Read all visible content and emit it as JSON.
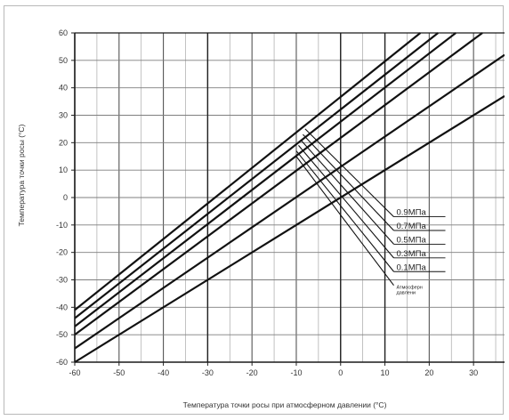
{
  "chart_data": {
    "type": "line",
    "xlabel": "Температура точки росы при атмосферном давлении (°C)",
    "ylabel": "Температура точки росы (°C)",
    "xlim": [
      -60,
      37
    ],
    "ylim": [
      -60,
      60
    ],
    "x_ticks": [
      -60,
      -50,
      -40,
      -30,
      -20,
      -10,
      0,
      10,
      20,
      30
    ],
    "y_ticks": [
      -60,
      -50,
      -40,
      -30,
      -20,
      -10,
      0,
      10,
      20,
      30,
      40,
      50,
      60
    ],
    "x_tick_labels": [
      "-60",
      "-50",
      "-40",
      "-30",
      "-20",
      "-10",
      "0",
      "10",
      "20",
      "30"
    ],
    "y_tick_labels": [
      "-60",
      "-50",
      "-40",
      "-30",
      "-20",
      "-10",
      "0",
      "10",
      "20",
      "30",
      "40",
      "50",
      "60"
    ],
    "grid": true,
    "series": [
      {
        "name": "Атмосферн давлени",
        "x": [
          -60,
          37
        ],
        "y": [
          -60,
          37
        ]
      },
      {
        "name": "0.1МПа",
        "x": [
          -60,
          37
        ],
        "y": [
          -55,
          52
        ]
      },
      {
        "name": "0.3МПа",
        "x": [
          -60,
          32
        ],
        "y": [
          -50,
          60
        ]
      },
      {
        "name": "0.5МПа",
        "x": [
          -60,
          26
        ],
        "y": [
          -47,
          60
        ]
      },
      {
        "name": "0.7МПа",
        "x": [
          -60,
          22
        ],
        "y": [
          -44,
          60
        ]
      },
      {
        "name": "0.9МПа",
        "x": [
          -60,
          18
        ],
        "y": [
          -41,
          60
        ]
      }
    ],
    "annotations": [
      {
        "text": "0.9МПа",
        "from": [
          -8,
          25
        ],
        "to": [
          12,
          -7
        ]
      },
      {
        "text": "0.7МПа",
        "from": [
          -8.5,
          23
        ],
        "to": [
          12,
          -12
        ]
      },
      {
        "text": "0.5МПа",
        "from": [
          -9,
          21
        ],
        "to": [
          12,
          -17
        ]
      },
      {
        "text": "0.3МПа",
        "from": [
          -9.5,
          19
        ],
        "to": [
          12,
          -22
        ]
      },
      {
        "text": "0.1МПа",
        "from": [
          -10,
          17
        ],
        "to": [
          12,
          -27
        ]
      },
      {
        "text": "Атмосферн давлени",
        "from": [
          -10,
          15
        ],
        "to": [
          12,
          -32
        ]
      }
    ],
    "colors": {
      "grid": "#7f7f7f",
      "line": "#111111",
      "frame": "#1a1a1a"
    }
  }
}
